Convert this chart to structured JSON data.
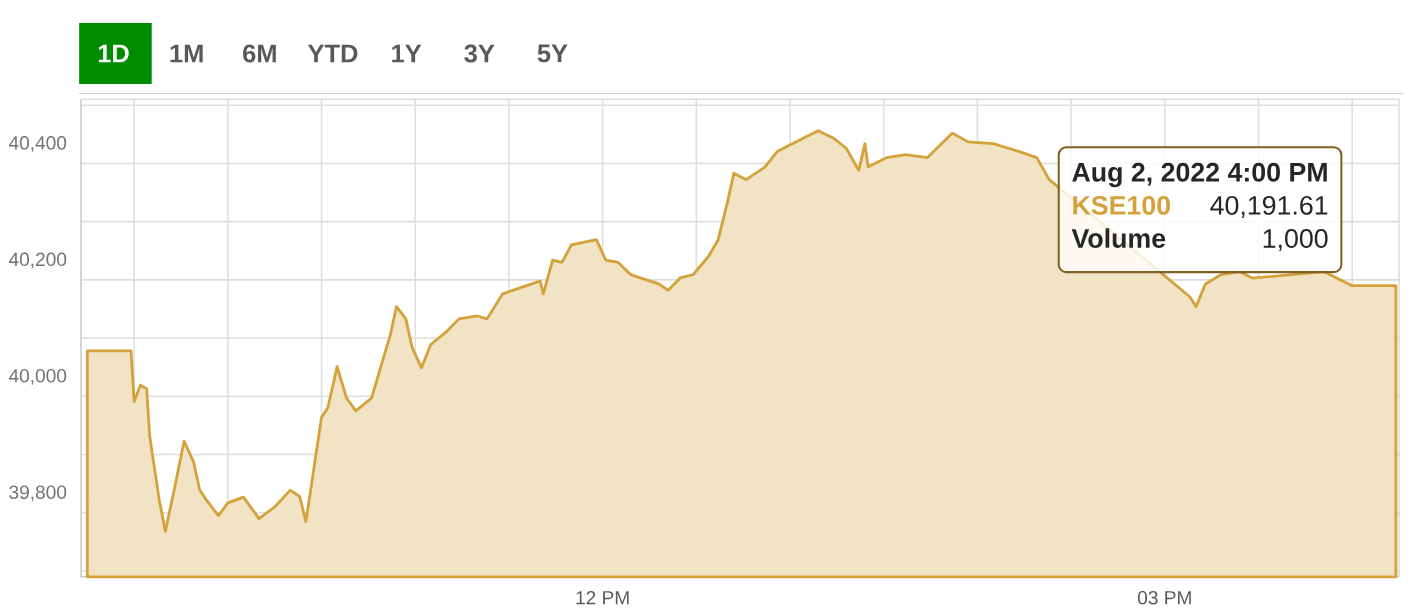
{
  "chart_data": {
    "type": "area",
    "series": [
      {
        "name": null,
        "color": "#d4a23a",
        "x": [
          "2022-08-02T09:15",
          "2022-08-02T09:29",
          "2022-08-02T09:30",
          "2022-08-02T09:32",
          "2022-08-02T09:34",
          "2022-08-02T09:35",
          "2022-08-02T09:38",
          "2022-08-02T09:40",
          "2022-08-02T09:43",
          "2022-08-02T09:46",
          "2022-08-02T09:49",
          "2022-08-02T09:51",
          "2022-08-02T09:53",
          "2022-08-02T09:57",
          "2022-08-02T10:00",
          "2022-08-02T10:05",
          "2022-08-02T10:10",
          "2022-08-02T10:15",
          "2022-08-02T10:20",
          "2022-08-02T10:23",
          "2022-08-02T10:25",
          "2022-08-02T10:27",
          "2022-08-02T10:30",
          "2022-08-02T10:32",
          "2022-08-02T10:35",
          "2022-08-02T10:38",
          "2022-08-02T10:41",
          "2022-08-02T10:46",
          "2022-08-02T10:49",
          "2022-08-02T10:52",
          "2022-08-02T10:54",
          "2022-08-02T10:57",
          "2022-08-02T10:59",
          "2022-08-02T11:02",
          "2022-08-02T11:05",
          "2022-08-02T11:10",
          "2022-08-02T11:14",
          "2022-08-02T11:20",
          "2022-08-02T11:23",
          "2022-08-02T11:28",
          "2022-08-02T11:34",
          "2022-08-02T11:40",
          "2022-08-02T11:41",
          "2022-08-02T11:44",
          "2022-08-02T11:47",
          "2022-08-02T11:50",
          "2022-08-02T11:58",
          "2022-08-02T12:01",
          "2022-08-02T12:05",
          "2022-08-02T12:09",
          "2022-08-02T12:14",
          "2022-08-02T12:18",
          "2022-08-02T12:21",
          "2022-08-02T12:25",
          "2022-08-02T12:29",
          "2022-08-02T12:34",
          "2022-08-02T12:37",
          "2022-08-02T12:40",
          "2022-08-02T12:42",
          "2022-08-02T12:46",
          "2022-08-02T12:52",
          "2022-08-02T12:56",
          "2022-08-02T13:02",
          "2022-08-02T13:09",
          "2022-08-02T13:14",
          "2022-08-02T13:18",
          "2022-08-02T13:22",
          "2022-08-02T13:24",
          "2022-08-02T13:25",
          "2022-08-02T13:31",
          "2022-08-02T13:37",
          "2022-08-02T13:44",
          "2022-08-02T13:52",
          "2022-08-02T13:57",
          "2022-08-02T14:05",
          "2022-08-02T14:13",
          "2022-08-02T14:19",
          "2022-08-02T14:23",
          "2022-08-02T14:35",
          "2022-08-02T14:44",
          "2022-08-02T14:52",
          "2022-08-02T14:58",
          "2022-08-02T15:02",
          "2022-08-02T15:06",
          "2022-08-02T15:08",
          "2022-08-02T15:10",
          "2022-08-02T15:13",
          "2022-08-02T15:18",
          "2022-08-02T15:24",
          "2022-08-02T15:28",
          "2022-08-02T15:29",
          "2022-08-02T15:34",
          "2022-08-02T15:43",
          "2022-08-02T15:51",
          "2022-08-02T16:00",
          "2022-08-02T16:14"
        ],
        "values": [
          40078,
          40078,
          39991,
          40019,
          40013,
          39931,
          39823,
          39768,
          39844,
          39923,
          39888,
          39839,
          39823,
          39795,
          39817,
          39827,
          39790,
          39810,
          39839,
          39828,
          39785,
          39856,
          39964,
          39980,
          40051,
          39997,
          39975,
          39997,
          40051,
          40105,
          40154,
          40133,
          40084,
          40049,
          40089,
          40111,
          40133,
          40138,
          40133,
          40176,
          40187,
          40198,
          40176,
          40234,
          40230,
          40260,
          40269,
          40234,
          40230,
          40209,
          40200,
          40193,
          40182,
          40204,
          40209,
          40241,
          40269,
          40334,
          40383,
          40372,
          40394,
          40421,
          40437,
          40456,
          40443,
          40426,
          40388,
          40434,
          40394,
          40410,
          40415,
          40410,
          40452,
          40437,
          40434,
          40421,
          40410,
          40372,
          null,
          null,
          null,
          null,
          null,
          null,
          40171,
          40154,
          40193,
          40209,
          40214,
          40203,
          null,
          null,
          null,
          40214,
          40190,
          40190
        ]
      }
    ],
    "xlim": [
      "2022-08-02T09:13",
      "2022-08-02T16:15"
    ],
    "ylim": [
      39690,
      40510
    ],
    "xticks": [
      {
        "value": "2022-08-02T09:30",
        "label": null
      },
      {
        "value": "2022-08-02T10:00",
        "label": null
      },
      {
        "value": "2022-08-02T10:30",
        "label": null
      },
      {
        "value": "2022-08-02T11:00",
        "label": null
      },
      {
        "value": "2022-08-02T11:30",
        "label": null
      },
      {
        "value": "2022-08-02T12:00",
        "label": "12 PM"
      },
      {
        "value": "2022-08-02T12:30",
        "label": null
      },
      {
        "value": "2022-08-02T13:00",
        "label": null
      },
      {
        "value": "2022-08-02T13:30",
        "label": null
      },
      {
        "value": "2022-08-02T14:00",
        "label": null
      },
      {
        "value": "2022-08-02T14:30",
        "label": null
      },
      {
        "value": "2022-08-02T15:00",
        "label": "03 PM"
      },
      {
        "value": "2022-08-02T15:30",
        "label": null
      },
      {
        "value": "2022-08-02T16:00",
        "label": null
      }
    ],
    "yticks": [
      {
        "value": 39700,
        "label": null
      },
      {
        "value": 39800,
        "label": "39,800"
      },
      {
        "value": 39900,
        "label": null
      },
      {
        "value": 40000,
        "label": "40,000"
      },
      {
        "value": 40100,
        "label": null
      },
      {
        "value": 40200,
        "label": "40,200"
      },
      {
        "value": 40300,
        "label": null
      },
      {
        "value": 40400,
        "label": "40,400"
      },
      {
        "value": 40500,
        "label": null
      }
    ],
    "grid": true,
    "annotations": [
      "Aug 2, 2022 4:00 PM",
      "KSE100",
      "40,191.61",
      "Volume",
      "1,000",
      "1D",
      "1M",
      "6M",
      "YTD",
      "1Y",
      "3Y",
      "5Y"
    ]
  }
}
